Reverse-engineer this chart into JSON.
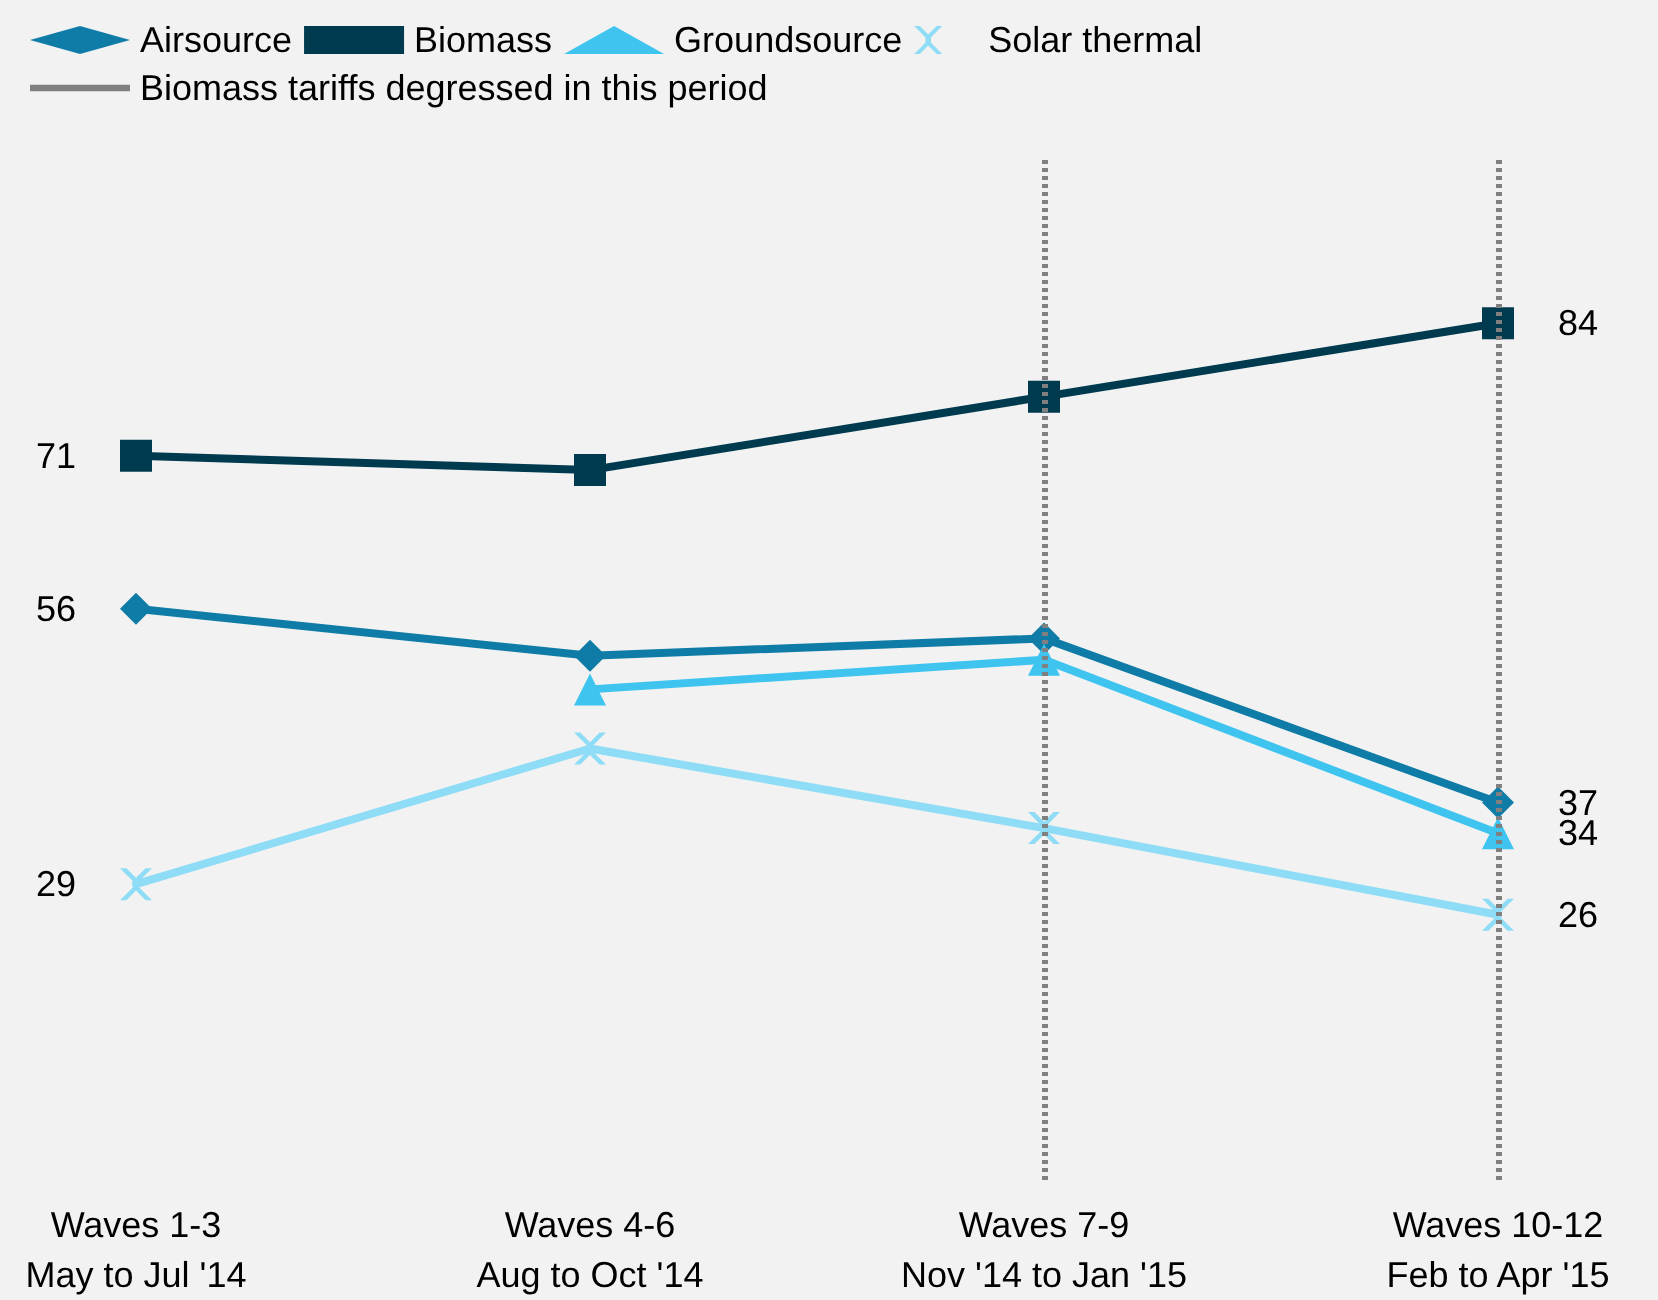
{
  "chart_data": {
    "type": "line",
    "legend": "top left",
    "grid": false,
    "categories": [
      "Waves 1-3\nMay to Jul '14",
      "Waves 4-6\nAug to Oct '14",
      "Waves 7-9\nNov '14 to Jan '15",
      "Waves 10-12\nFeb to Apr '15"
    ],
    "series": [
      {
        "name": "Airsource",
        "color": "#0e7ca6",
        "marker": "diamond",
        "values": [
          56,
          51.4,
          53.1,
          37
        ],
        "value_labels": [
          "56",
          null,
          null,
          "37"
        ]
      },
      {
        "name": "Biomass",
        "color": "#003a4f",
        "marker": "square",
        "values": [
          71,
          69.6,
          76.8,
          84
        ],
        "value_labels": [
          "71",
          null,
          null,
          "84"
        ]
      },
      {
        "name": "Groundsource",
        "color": "#3ec4ef",
        "marker": "triangle",
        "values": [
          null,
          48.1,
          51,
          34
        ],
        "value_labels": [
          null,
          null,
          null,
          "34"
        ]
      },
      {
        "name": "Solar thermal",
        "color": "#8edcf6",
        "marker": "cross",
        "values": [
          29,
          42.3,
          34.5,
          26
        ],
        "value_labels": [
          "29",
          null,
          null,
          "26"
        ]
      }
    ],
    "ref_lines": [
      {
        "axis": "x",
        "value": "Waves 7-9\nNov '14 to Jan '15",
        "label": "Biomass tariffs degressed in this period",
        "color": "#808080",
        "line_style": "dotted"
      },
      {
        "axis": "x",
        "value": "Waves 10-12\nFeb to Apr '15",
        "label": null,
        "color": "#808080",
        "line_style": "dotted"
      }
    ]
  }
}
